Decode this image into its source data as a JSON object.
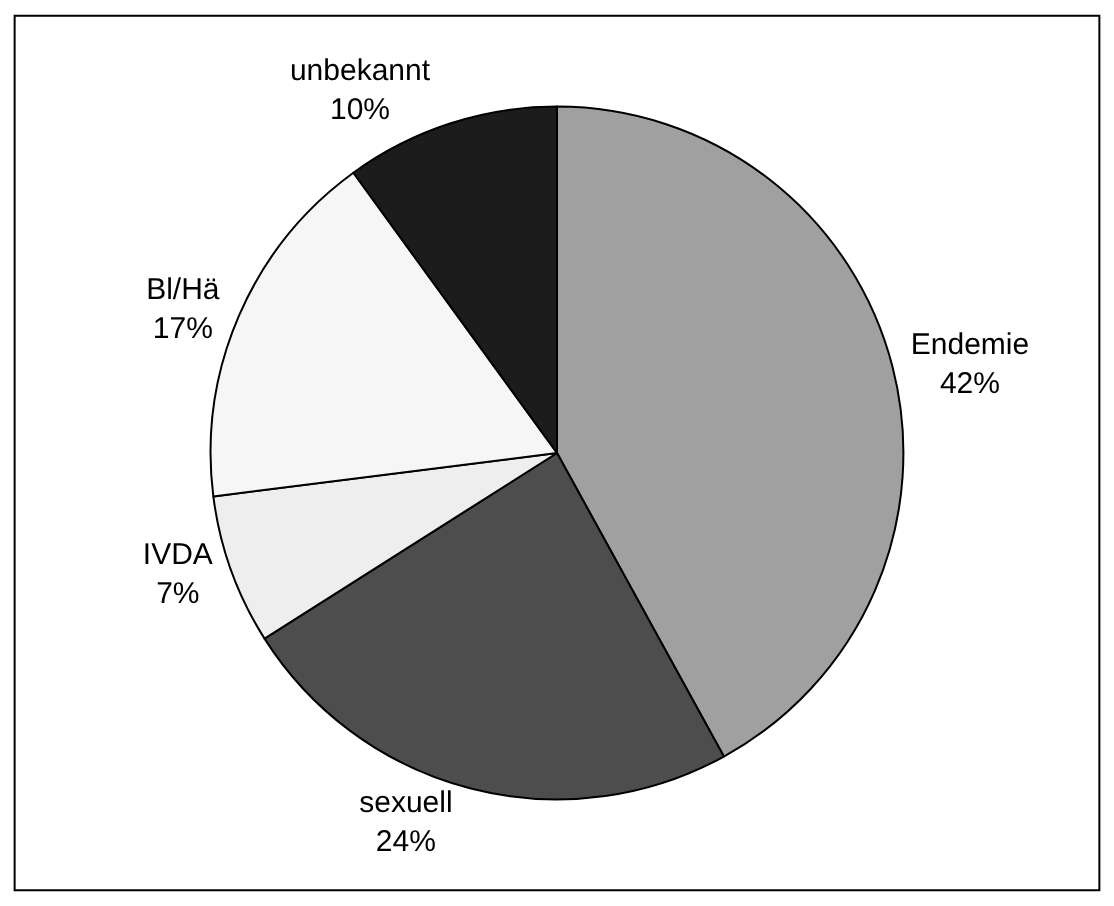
{
  "chart_data": {
    "type": "pie",
    "categories": [
      "Endemie",
      "sexuell",
      "IVDA",
      "Bl/Hä",
      "unbekannt"
    ],
    "values": [
      42,
      24,
      7,
      17,
      10
    ],
    "value_labels": [
      "42%",
      "24%",
      "7%",
      "17%",
      "10%"
    ],
    "colors": [
      "#a0a0a0",
      "#4d4d4d",
      "#eeeeee",
      "#f6f6f6",
      "#1c1c1c"
    ],
    "legend": false
  }
}
